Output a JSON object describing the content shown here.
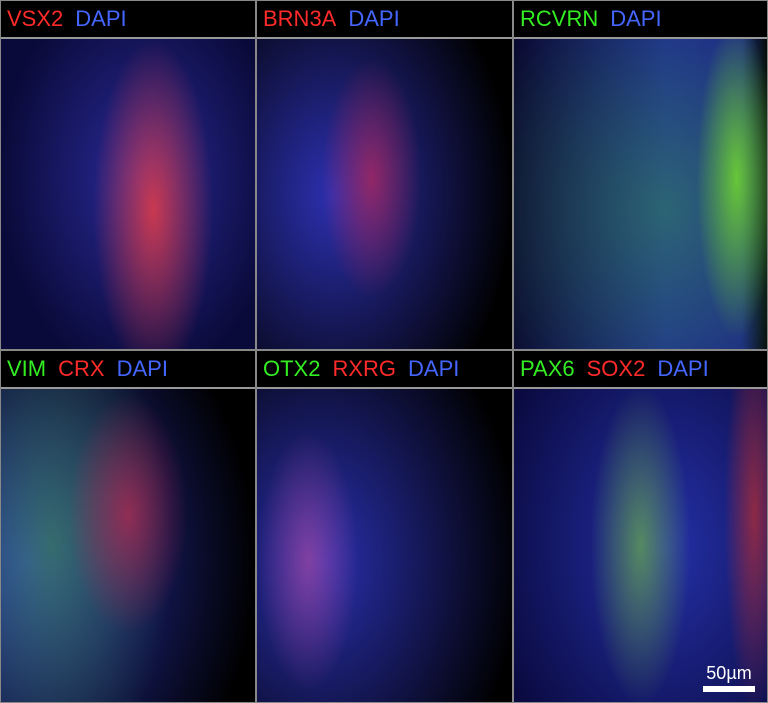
{
  "panels": [
    {
      "markers": [
        {
          "text": "VSX2",
          "color": "#ff2a2a"
        },
        {
          "text": "DAPI",
          "color": "#4466ff"
        }
      ]
    },
    {
      "markers": [
        {
          "text": "BRN3A",
          "color": "#ff2a2a"
        },
        {
          "text": "DAPI",
          "color": "#4466ff"
        }
      ]
    },
    {
      "markers": [
        {
          "text": "RCVRN",
          "color": "#33ee22"
        },
        {
          "text": "DAPI",
          "color": "#4466ff"
        }
      ]
    },
    {
      "markers": [
        {
          "text": "VIM",
          "color": "#33ee22"
        },
        {
          "text": "CRX",
          "color": "#ff2a2a"
        },
        {
          "text": "DAPI",
          "color": "#4466ff"
        }
      ]
    },
    {
      "markers": [
        {
          "text": "OTX2",
          "color": "#33ee22"
        },
        {
          "text": "RXRG",
          "color": "#ff2a2a"
        },
        {
          "text": "DAPI",
          "color": "#4466ff"
        }
      ]
    },
    {
      "markers": [
        {
          "text": "PAX6",
          "color": "#33ee22"
        },
        {
          "text": "SOX2",
          "color": "#ff2a2a"
        },
        {
          "text": "DAPI",
          "color": "#4466ff"
        }
      ]
    }
  ],
  "scale_bar": {
    "label": "50µm"
  }
}
